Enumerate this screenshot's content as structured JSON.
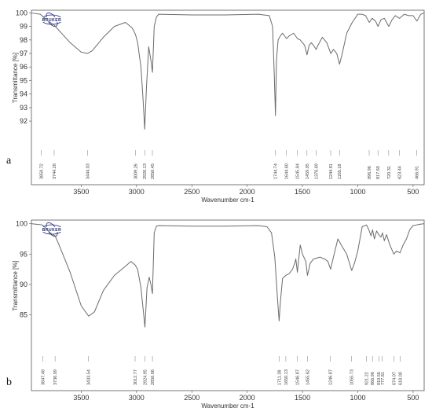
{
  "chart_data": [
    {
      "type": "line",
      "panel_label": "a",
      "logo_text": "BRUKER",
      "xlabel": "Wavenumber cm-1",
      "ylabel": "Transmittance [%]",
      "xlim": [
        3950,
        400
      ],
      "ylim": [
        90.2,
        100.2
      ],
      "x_ticks": [
        3500,
        3000,
        2500,
        2000,
        1500,
        1000,
        500
      ],
      "y_ticks": [
        92,
        93,
        94,
        95,
        96,
        97,
        98,
        99,
        100
      ],
      "peak_labels": [
        "3859.72",
        "3744.28",
        "3444.03",
        "3009.26",
        "2926.13",
        "2856.45",
        "1744.74",
        "1644.60",
        "1545.84",
        "1459.05",
        "1376.69",
        "1244.81",
        "1165.18",
        "896.96",
        "817.60",
        "720.31",
        "623.44",
        "466.91"
      ],
      "peaks": [
        3859.72,
        3744.28,
        3444.03,
        3009.26,
        2926.13,
        2856.45,
        1744.74,
        1644.6,
        1545.84,
        1459.05,
        1376.69,
        1244.81,
        1165.18,
        896.96,
        817.6,
        720.31,
        623.44,
        466.91
      ],
      "series": [
        {
          "x": [
            3950,
            3870,
            3800,
            3744,
            3700,
            3600,
            3500,
            3444,
            3400,
            3300,
            3200,
            3100,
            3040,
            3009,
            2990,
            2960,
            2940,
            2926,
            2910,
            2890,
            2870,
            2856,
            2840,
            2820,
            2800,
            2500,
            2200,
            1900,
            1800,
            1770,
            1755,
            1744,
            1735,
            1720,
            1700,
            1680,
            1644,
            1620,
            1580,
            1545,
            1520,
            1480,
            1459,
            1440,
            1420,
            1400,
            1376,
            1360,
            1320,
            1280,
            1244,
            1220,
            1190,
            1165,
            1140,
            1100,
            1050,
            1000,
            960,
            930,
            896,
            870,
            840,
            817,
            790,
            760,
            720,
            690,
            660,
            623,
            580,
            540,
            500,
            466,
            430,
            400
          ],
          "y": [
            100.0,
            99.9,
            99.4,
            99.1,
            98.7,
            97.8,
            97.1,
            97.0,
            97.2,
            98.2,
            99.0,
            99.3,
            98.9,
            98.4,
            97.8,
            96.0,
            93.5,
            91.4,
            94.5,
            97.5,
            96.5,
            95.6,
            99.0,
            99.7,
            99.9,
            99.85,
            99.85,
            99.9,
            99.8,
            99.0,
            95.5,
            92.4,
            96.5,
            98.0,
            98.3,
            98.5,
            98.1,
            98.3,
            98.5,
            98.1,
            98.0,
            97.6,
            96.9,
            97.6,
            97.8,
            97.6,
            97.3,
            97.6,
            98.2,
            97.8,
            97.0,
            97.3,
            97.0,
            96.2,
            97.0,
            98.5,
            99.3,
            99.9,
            99.9,
            99.8,
            99.3,
            99.6,
            99.4,
            99.0,
            99.5,
            99.6,
            99.0,
            99.5,
            99.8,
            99.6,
            99.9,
            99.8,
            99.8,
            99.4,
            99.9,
            100.0
          ]
        }
      ]
    },
    {
      "type": "line",
      "panel_label": "b",
      "logo_text": "BRUKER",
      "xlabel": "Wavenumber cm-1",
      "ylabel": "Transmittance [%]",
      "xlim": [
        3950,
        400
      ],
      "ylim": [
        79,
        100.6
      ],
      "x_ticks": [
        3500,
        3000,
        2500,
        2000,
        1500,
        1000,
        500
      ],
      "y_ticks": [
        85,
        90,
        95,
        100
      ],
      "peak_labels": [
        "3847.48",
        "3736.09",
        "3433.54",
        "3012.77",
        "2924.95",
        "2856.06",
        "1711.38",
        "1650.13",
        "1546.87",
        "1455.62",
        "1246.87",
        "1055.73",
        "921.22",
        "866.96",
        "810.56",
        "777.81",
        "674.07",
        "618.00"
      ],
      "peaks": [
        3847.48,
        3736.09,
        3433.54,
        3012.77,
        2924.95,
        2856.06,
        1711.38,
        1650.13,
        1546.87,
        1455.62,
        1246.87,
        1055.73,
        921.22,
        866.96,
        810.56,
        777.81,
        674.07,
        618.0
      ],
      "series": [
        {
          "x": [
            3950,
            3850,
            3780,
            3736,
            3700,
            3600,
            3500,
            3433,
            3380,
            3300,
            3200,
            3100,
            3050,
            3012,
            2990,
            2960,
            2935,
            2924,
            2905,
            2885,
            2870,
            2856,
            2840,
            2820,
            2800,
            2500,
            2200,
            1900,
            1820,
            1780,
            1750,
            1725,
            1711,
            1700,
            1680,
            1650,
            1620,
            1590,
            1570,
            1560,
            1546,
            1520,
            1500,
            1470,
            1455,
            1430,
            1400,
            1340,
            1300,
            1270,
            1246,
            1220,
            1180,
            1140,
            1100,
            1070,
            1055,
            1030,
            1000,
            960,
            921,
            900,
            880,
            866,
            850,
            830,
            810,
            790,
            777,
            760,
            740,
            710,
            674,
            650,
            618,
            590,
            560,
            530,
            500,
            470,
            440,
            400
          ],
          "y": [
            100.0,
            99.8,
            98.5,
            98.0,
            96.5,
            92.0,
            86.5,
            84.8,
            85.5,
            89.0,
            91.5,
            93.0,
            93.8,
            93.2,
            92.5,
            89.5,
            85.0,
            83.0,
            89.5,
            91.2,
            90.0,
            88.5,
            98.5,
            99.6,
            99.7,
            99.6,
            99.6,
            99.7,
            99.5,
            98.5,
            94.5,
            87.5,
            84.0,
            87.0,
            91.0,
            91.5,
            91.8,
            92.5,
            93.5,
            94.2,
            92.0,
            96.5,
            95.0,
            93.8,
            91.5,
            93.5,
            94.2,
            94.5,
            94.2,
            93.8,
            92.5,
            94.5,
            97.5,
            96.2,
            95.0,
            93.2,
            92.3,
            93.5,
            95.5,
            99.5,
            99.8,
            99.0,
            98.0,
            99.0,
            97.5,
            98.8,
            98.2,
            97.8,
            98.5,
            97.2,
            98.2,
            96.5,
            95.0,
            95.5,
            95.2,
            96.5,
            97.5,
            99.0,
            99.7,
            99.8,
            99.9,
            100.0
          ]
        }
      ]
    }
  ]
}
